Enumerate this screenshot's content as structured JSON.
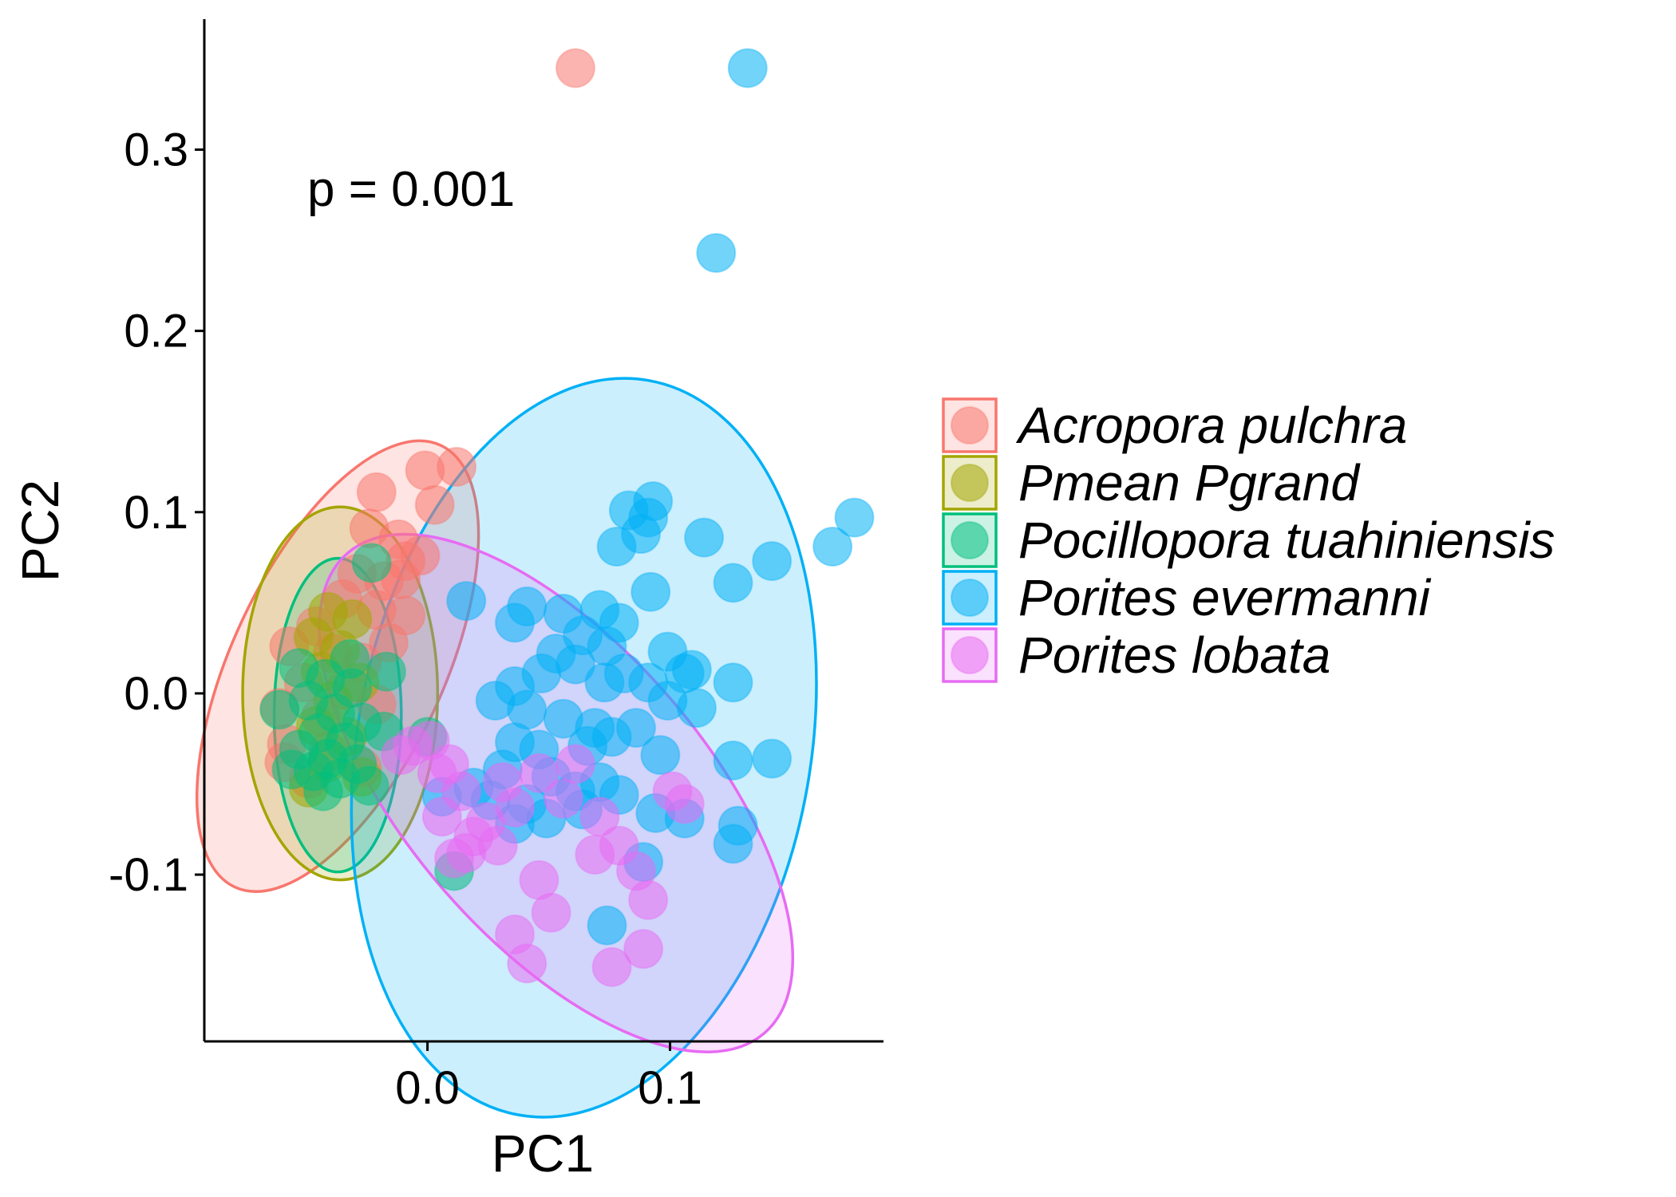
{
  "chart_data": {
    "type": "scatter",
    "xlabel": "PC1",
    "ylabel": "PC2",
    "xlim": [
      -0.092,
      0.188
    ],
    "ylim": [
      -0.192,
      0.372
    ],
    "x_ticks": [
      0.0,
      0.1
    ],
    "x_tick_labels": [
      "0.0",
      "0.1"
    ],
    "y_ticks": [
      -0.1,
      0.0,
      0.1,
      0.2,
      0.3
    ],
    "y_tick_labels": [
      "-0.1",
      "0.0",
      "0.1",
      "0.2",
      "0.3"
    ],
    "grid": false,
    "legend_position": "right",
    "annotation": {
      "text": "p = 0.001",
      "x": -0.05,
      "y": 0.28
    },
    "series": [
      {
        "name": "Acropora pulchra",
        "color": "#F8766D",
        "ellipse": {
          "cx": -0.037,
          "cy": 0.015,
          "rx": 0.115,
          "ry": 0.05,
          "angle_deg": 65
        },
        "points": [
          [
            0.061,
            0.345
          ],
          [
            -0.001,
            0.123
          ],
          [
            0.012,
            0.125
          ],
          [
            -0.021,
            0.111
          ],
          [
            0.003,
            0.104
          ],
          [
            -0.024,
            0.091
          ],
          [
            -0.012,
            0.085
          ],
          [
            -0.009,
            0.073
          ],
          [
            -0.003,
            0.076
          ],
          [
            -0.029,
            0.066
          ],
          [
            -0.018,
            0.062
          ],
          [
            -0.035,
            0.052
          ],
          [
            -0.021,
            0.046
          ],
          [
            -0.009,
            0.043
          ],
          [
            -0.046,
            0.037
          ],
          [
            -0.057,
            0.026
          ],
          [
            -0.039,
            0.022
          ],
          [
            -0.027,
            0.017
          ],
          [
            -0.016,
            0.028
          ],
          [
            -0.051,
            0.006
          ],
          [
            -0.034,
            0.002
          ],
          [
            -0.061,
            -0.008
          ],
          [
            -0.044,
            -0.013
          ],
          [
            -0.021,
            -0.006
          ],
          [
            -0.058,
            -0.028
          ],
          [
            -0.041,
            -0.032
          ],
          [
            -0.059,
            -0.038
          ],
          [
            -0.049,
            -0.047
          ],
          [
            -0.027,
            -0.041
          ],
          [
            -0.011,
            0.063
          ]
        ]
      },
      {
        "name": "Pmean Pgrand",
        "color": "#A3A500",
        "ellipse": {
          "cx": -0.036,
          "cy": 0.0,
          "rx": 0.046,
          "ry": 0.088,
          "angle_deg": 0
        },
        "points": [
          [
            -0.041,
            0.045
          ],
          [
            -0.031,
            0.041
          ],
          [
            -0.047,
            0.031
          ],
          [
            -0.036,
            0.024
          ],
          [
            -0.044,
            0.012
          ],
          [
            -0.028,
            0.006
          ],
          [
            -0.039,
            -0.004
          ],
          [
            -0.046,
            -0.018
          ],
          [
            -0.033,
            -0.024
          ],
          [
            -0.041,
            -0.038
          ],
          [
            -0.027,
            -0.046
          ],
          [
            -0.049,
            -0.052
          ]
        ]
      },
      {
        "name": "Pocillopora tuahiniensis",
        "color": "#00BF7D",
        "ellipse": {
          "cx": -0.037,
          "cy": -0.012,
          "rx": 0.03,
          "ry": 0.074,
          "angle_deg": 0
        },
        "points": [
          [
            -0.023,
            0.072
          ],
          [
            -0.053,
            0.014
          ],
          [
            -0.042,
            0.008
          ],
          [
            -0.031,
            0.003
          ],
          [
            -0.049,
            -0.004
          ],
          [
            -0.038,
            -0.011
          ],
          [
            -0.027,
            -0.016
          ],
          [
            -0.045,
            -0.022
          ],
          [
            -0.034,
            -0.027
          ],
          [
            -0.053,
            -0.031
          ],
          [
            -0.041,
            -0.036
          ],
          [
            -0.029,
            -0.039
          ],
          [
            -0.047,
            -0.043
          ],
          [
            -0.036,
            -0.047
          ],
          [
            -0.024,
            -0.051
          ],
          [
            -0.043,
            -0.054
          ],
          [
            -0.056,
            -0.042
          ],
          [
            -0.018,
            -0.021
          ],
          [
            -0.061,
            -0.009
          ],
          [
            0.0,
            -0.024
          ],
          [
            0.011,
            -0.098
          ],
          [
            -0.017,
            0.012
          ],
          [
            -0.032,
            0.019
          ]
        ]
      },
      {
        "name": "Porites evermanni",
        "color": "#00B0F6",
        "ellipse": {
          "cx": 0.0645,
          "cy": -0.03,
          "rx": 0.107,
          "ry": 0.176,
          "angle_deg": -10
        },
        "points": [
          [
            0.132,
            0.345
          ],
          [
            0.119,
            0.243
          ],
          [
            0.176,
            0.097
          ],
          [
            0.167,
            0.081
          ],
          [
            0.093,
            0.106
          ],
          [
            0.083,
            0.101
          ],
          [
            0.091,
            0.097
          ],
          [
            0.088,
            0.088
          ],
          [
            0.078,
            0.081
          ],
          [
            0.114,
            0.086
          ],
          [
            0.142,
            0.073
          ],
          [
            0.126,
            0.061
          ],
          [
            0.092,
            0.056
          ],
          [
            0.036,
            0.039
          ],
          [
            0.041,
            0.048
          ],
          [
            0.056,
            0.044
          ],
          [
            0.071,
            0.046
          ],
          [
            0.079,
            0.039
          ],
          [
            0.064,
            0.032
          ],
          [
            0.074,
            0.026
          ],
          [
            0.053,
            0.022
          ],
          [
            0.061,
            0.016
          ],
          [
            0.047,
            0.011
          ],
          [
            0.036,
            0.004
          ],
          [
            0.073,
            0.006
          ],
          [
            0.081,
            0.011
          ],
          [
            0.091,
            0.006
          ],
          [
            0.106,
            0.011
          ],
          [
            0.126,
            0.006
          ],
          [
            0.099,
            -0.004
          ],
          [
            0.111,
            -0.008
          ],
          [
            0.028,
            -0.004
          ],
          [
            0.041,
            -0.009
          ],
          [
            0.056,
            -0.014
          ],
          [
            0.069,
            -0.019
          ],
          [
            0.076,
            -0.024
          ],
          [
            0.086,
            -0.019
          ],
          [
            0.036,
            -0.027
          ],
          [
            0.046,
            -0.031
          ],
          [
            0.066,
            -0.029
          ],
          [
            0.096,
            -0.034
          ],
          [
            0.126,
            -0.037
          ],
          [
            0.142,
            -0.036
          ],
          [
            0.031,
            -0.042
          ],
          [
            0.051,
            -0.046
          ],
          [
            0.071,
            -0.049
          ],
          [
            0.019,
            -0.052
          ],
          [
            0.006,
            -0.057
          ],
          [
            0.026,
            -0.059
          ],
          [
            0.041,
            -0.061
          ],
          [
            0.061,
            -0.054
          ],
          [
            0.079,
            -0.056
          ],
          [
            0.094,
            -0.066
          ],
          [
            0.106,
            -0.069
          ],
          [
            0.036,
            -0.072
          ],
          [
            0.049,
            -0.069
          ],
          [
            0.064,
            -0.064
          ],
          [
            0.128,
            -0.073
          ],
          [
            0.126,
            -0.083
          ],
          [
            0.089,
            -0.093
          ],
          [
            0.074,
            -0.128
          ],
          [
            0.016,
            0.051
          ],
          [
            0.109,
            0.013
          ],
          [
            0.099,
            0.023
          ]
        ]
      },
      {
        "name": "Porites lobata",
        "color": "#E76BF3",
        "ellipse": {
          "cx": 0.053,
          "cy": -0.055,
          "rx": 0.15,
          "ry": 0.07,
          "angle_deg": -49
        },
        "points": [
          [
            0.079,
            -0.084
          ],
          [
            0.086,
            -0.098
          ],
          [
            0.069,
            -0.089
          ],
          [
            0.046,
            -0.103
          ],
          [
            0.051,
            -0.121
          ],
          [
            0.036,
            -0.133
          ],
          [
            0.089,
            -0.141
          ],
          [
            0.076,
            -0.151
          ],
          [
            0.041,
            -0.149
          ],
          [
            0.091,
            -0.114
          ],
          [
            0.016,
            -0.088
          ],
          [
            0.006,
            -0.068
          ],
          [
            0.024,
            -0.071
          ],
          [
            0.019,
            -0.079
          ],
          [
            0.036,
            -0.063
          ],
          [
            0.056,
            -0.058
          ],
          [
            0.071,
            -0.068
          ],
          [
            0.101,
            -0.054
          ],
          [
            0.106,
            -0.061
          ],
          [
            -0.006,
            -0.029
          ],
          [
            0.004,
            -0.044
          ],
          [
            0.014,
            -0.054
          ],
          [
            0.031,
            -0.049
          ],
          [
            0.046,
            -0.044
          ],
          [
            0.061,
            -0.039
          ],
          [
            -0.011,
            -0.034
          ],
          [
            0.009,
            -0.039
          ],
          [
            0.001,
            -0.026
          ],
          [
            0.011,
            -0.091
          ],
          [
            0.029,
            -0.084
          ]
        ]
      }
    ]
  }
}
